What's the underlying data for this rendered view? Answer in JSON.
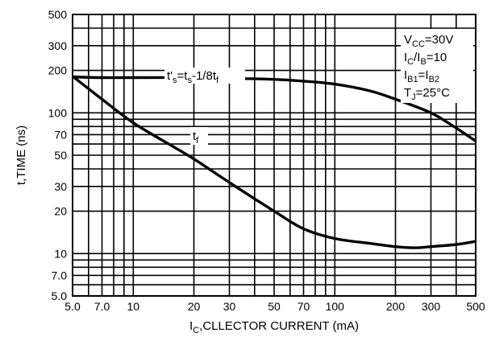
{
  "chart_data": {
    "type": "line",
    "x_scale": "log",
    "y_scale": "log",
    "xlim": [
      5,
      500
    ],
    "ylim": [
      5,
      500
    ],
    "grid": true,
    "xlabel": {
      "main": "I",
      "sub": "C",
      "rest": ",CLLECTOR CURRENT (mA)"
    },
    "ylabel": "t,TIME (ns)",
    "x_ticks": [
      {
        "value": 5,
        "label": "5.0"
      },
      {
        "value": 7,
        "label": "7.0"
      },
      {
        "value": 10,
        "label": "10"
      },
      {
        "value": 20,
        "label": "20"
      },
      {
        "value": 30,
        "label": "30"
      },
      {
        "value": 50,
        "label": "50"
      },
      {
        "value": 70,
        "label": "70"
      },
      {
        "value": 100,
        "label": "100"
      },
      {
        "value": 200,
        "label": "200"
      },
      {
        "value": 300,
        "label": "300"
      },
      {
        "value": 500,
        "label": "500"
      }
    ],
    "y_ticks": [
      {
        "value": 5,
        "label": "5.0"
      },
      {
        "value": 7,
        "label": "7.0"
      },
      {
        "value": 10,
        "label": "10"
      },
      {
        "value": 20,
        "label": "20"
      },
      {
        "value": 30,
        "label": "30"
      },
      {
        "value": 50,
        "label": "50"
      },
      {
        "value": 70,
        "label": "70"
      },
      {
        "value": 100,
        "label": "100"
      },
      {
        "value": 200,
        "label": "200"
      },
      {
        "value": 300,
        "label": "300"
      },
      {
        "value": 500,
        "label": "500"
      }
    ],
    "x_grid": [
      5,
      6,
      7,
      8,
      9,
      10,
      20,
      30,
      40,
      50,
      60,
      70,
      80,
      90,
      100,
      200,
      300,
      400,
      500
    ],
    "y_grid": [
      5,
      6,
      7,
      8,
      9,
      10,
      20,
      30,
      40,
      50,
      60,
      70,
      80,
      90,
      100,
      200,
      300,
      400,
      500
    ],
    "series": [
      {
        "name_parts": {
          "a": "t'",
          "a_sub": "s",
          "b": "=t",
          "b_sub": "s",
          "c": "-1/8t",
          "c_sub": "f"
        },
        "x": [
          5,
          7,
          10,
          20,
          30,
          50,
          70,
          100,
          150,
          200,
          300,
          400,
          500
        ],
        "y": [
          180,
          178,
          178,
          178,
          176,
          173,
          168,
          160,
          143,
          125,
          100,
          78,
          63
        ]
      },
      {
        "name_parts": {
          "a": "t",
          "a_sub": "f"
        },
        "x": [
          5,
          7,
          10,
          15,
          20,
          30,
          50,
          70,
          100,
          150,
          200,
          250,
          300,
          400,
          500
        ],
        "y": [
          182,
          125,
          85,
          60,
          47,
          32,
          20,
          15,
          12.8,
          11.8,
          11.2,
          11,
          11.2,
          11.6,
          12.2
        ]
      }
    ],
    "conditions": [
      {
        "main": "V",
        "sub": "CC",
        "rest": "=30V"
      },
      {
        "main": "I",
        "sub": "C",
        "mid": "/I",
        "sub2": "B",
        "rest": "=10"
      },
      {
        "main": "I",
        "sub": "B1",
        "mid": "=I",
        "sub2": "B2",
        "rest": ""
      },
      {
        "main": "T",
        "sub": "J",
        "rest": "=25°C"
      }
    ]
  }
}
